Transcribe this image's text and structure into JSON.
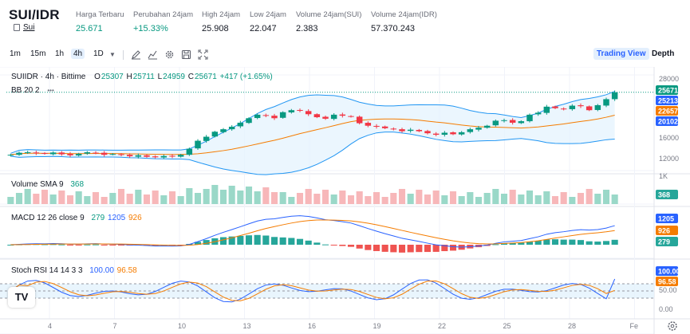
{
  "header": {
    "pair": "SUI/IDR",
    "coin_link": "Sui",
    "stats": [
      {
        "label": "Harga Terbaru",
        "value": "25.671",
        "tone": "up"
      },
      {
        "label": "Perubahan 24jam",
        "value": "+15.33%",
        "tone": "up"
      },
      {
        "label": "High 24jam",
        "value": "25.908",
        "tone": ""
      },
      {
        "label": "Low 24jam",
        "value": "22.047",
        "tone": ""
      },
      {
        "label": "Volume 24jam(SUI)",
        "value": "2.383",
        "tone": ""
      },
      {
        "label": "Volume 24jam(IDR)",
        "value": "57.370.243",
        "tone": ""
      }
    ]
  },
  "toolbar": {
    "timeframes": [
      "1m",
      "15m",
      "1h",
      "4h",
      "1D"
    ],
    "active_timeframe": "4h",
    "dropdown_icon": "chevron-down-icon",
    "tools": [
      "pencil-icon",
      "indicators-icon",
      "gear-icon",
      "camera-icon",
      "fullscreen-icon"
    ],
    "view_tabs": [
      "Trading View",
      "Depth"
    ],
    "active_view": "Trading View"
  },
  "legend": {
    "symbol": "SUIIDR · 4h · Bittime",
    "o_label": "O",
    "o": "25307",
    "h_label": "H",
    "h": "25711",
    "l_label": "L",
    "l": "24959",
    "c_label": "C",
    "c": "25671",
    "change": "+417 (+1.65%)",
    "bb": "BB 20 2",
    "bb_more": "•••",
    "vol_name": "Volume SMA 9",
    "vol_value": "368",
    "macd_name": "MACD 12 26 close 9",
    "macd_hist": "279",
    "macd_line": "1205",
    "macd_signal": "926",
    "stoch_name": "Stoch RSI 14 14 3 3",
    "stoch_k": "100.00",
    "stoch_d": "96.58"
  },
  "axes": {
    "price_ticks": [
      "28000",
      "16000",
      "12000"
    ],
    "price_labels": [
      {
        "text": "25671",
        "color": "#089981"
      },
      {
        "text": "25213",
        "color": "#2962ff"
      },
      {
        "text": "22657",
        "color": "#f57c00"
      },
      {
        "text": "20102",
        "color": "#2962ff"
      }
    ],
    "vol_tick": "1K",
    "vol_label": "368",
    "macd_labels": [
      {
        "text": "1205",
        "color": "#2962ff"
      },
      {
        "text": "926",
        "color": "#f57c00"
      },
      {
        "text": "279",
        "color": "#26a69a"
      }
    ],
    "stoch_ticks": [
      "100.00",
      "50.00",
      "0.00"
    ],
    "stoch_labels": [
      {
        "text": "100.00",
        "color": "#2962ff"
      },
      {
        "text": "96.58",
        "color": "#f57c00"
      }
    ],
    "time_ticks": [
      "4",
      "7",
      "10",
      "13",
      "16",
      "19",
      "22",
      "25",
      "28",
      "Fe"
    ],
    "settings_icon": "gear-icon"
  },
  "logo": "TV",
  "colors": {
    "up": "#089981",
    "down": "#f23645",
    "bb_band": "#2196f3",
    "basis": "#f57c00",
    "fill": "#e3f2fd"
  },
  "chart_data": {
    "type": "candlestick",
    "x_ticks": [
      "4",
      "7",
      "10",
      "13",
      "16",
      "19",
      "22",
      "25",
      "28",
      "Fe"
    ],
    "close_series": [
      13200,
      13600,
      13700,
      13500,
      13400,
      13650,
      13300,
      13100,
      13400,
      13700,
      13600,
      13200,
      13350,
      13150,
      12900,
      13100,
      12800,
      12700,
      12950,
      12900,
      13200,
      14400,
      16000,
      16800,
      17800,
      18300,
      18800,
      19600,
      20500,
      21200,
      21000,
      20500,
      21700,
      22100,
      22000,
      21300,
      20700,
      20400,
      21200,
      21000,
      20800,
      19500,
      19000,
      18800,
      18500,
      18300,
      17900,
      18200,
      17900,
      17500,
      17200,
      17600,
      17300,
      17700,
      18300,
      18600,
      19000,
      20000,
      20100,
      19600,
      19900,
      21200,
      21600,
      22800,
      22500,
      22300,
      23000,
      22900,
      22100,
      23100,
      24300,
      25671
    ],
    "volume_sma": 368,
    "macd": {
      "macd": 1205,
      "signal": 926,
      "histogram": 279
    },
    "stoch_rsi": {
      "k": 100.0,
      "d": 96.58
    }
  }
}
